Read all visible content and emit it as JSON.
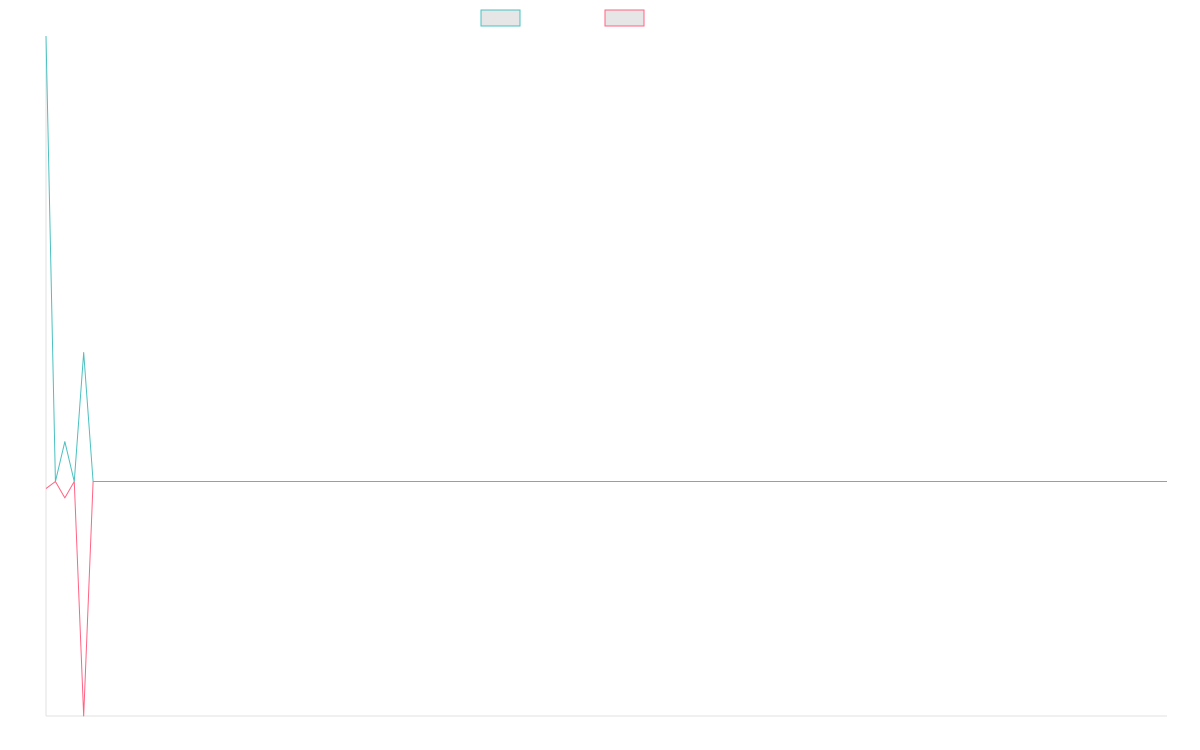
{
  "chart_data": {
    "type": "line",
    "title": "",
    "xlabel": "",
    "ylabel": "",
    "x": [
      0,
      1,
      2,
      3,
      4,
      5,
      6,
      7,
      8,
      9,
      10,
      11,
      12,
      13,
      14,
      15,
      16,
      17,
      18,
      19,
      20,
      21,
      22,
      23,
      24,
      25,
      26,
      27,
      28,
      29,
      30,
      31,
      32,
      33,
      34,
      35,
      36,
      37,
      38,
      39,
      40,
      41,
      42,
      43,
      44,
      45,
      46,
      47,
      48,
      49,
      50,
      51,
      52,
      53,
      54,
      55,
      56,
      57,
      58,
      59,
      60,
      61,
      62,
      63,
      64,
      65,
      66,
      67,
      68,
      69,
      70,
      71,
      72,
      73,
      74,
      75,
      76,
      77,
      78,
      79,
      80,
      81,
      82,
      83,
      84,
      85,
      86,
      87,
      88,
      89,
      90,
      91,
      92,
      93,
      94,
      95,
      96,
      97,
      98,
      99,
      100,
      101,
      102,
      103,
      104,
      105,
      106,
      107,
      108,
      109,
      110,
      111,
      112,
      113,
      114,
      115,
      116,
      117,
      118,
      119
    ],
    "ylim": [
      -1,
      1.9
    ],
    "grid": false,
    "legend_position": "top-center",
    "series": [
      {
        "color": "#4bc0c0",
        "values": [
          1.9,
          0,
          0.17,
          0,
          0.55,
          0,
          0,
          0,
          0,
          0,
          0,
          0,
          0,
          0,
          0,
          0,
          0,
          0,
          0,
          0,
          0,
          0,
          0,
          0,
          0,
          0,
          0,
          0,
          0,
          0,
          0,
          0,
          0,
          0,
          0,
          0,
          0,
          0,
          0,
          0,
          0,
          0,
          0,
          0,
          0,
          0,
          0,
          0,
          0,
          0,
          0,
          0,
          0,
          0,
          0,
          0,
          0,
          0,
          0,
          0,
          0,
          0,
          0,
          0,
          0,
          0,
          0,
          0,
          0,
          0,
          0,
          0,
          0,
          0,
          0,
          0,
          0,
          0,
          0,
          0,
          0,
          0,
          0,
          0,
          0,
          0,
          0,
          0,
          0,
          0,
          0,
          0,
          0,
          0,
          0,
          0,
          0,
          0,
          0,
          0,
          0,
          0,
          0,
          0,
          0,
          0,
          0,
          0,
          0,
          0,
          0,
          0,
          0,
          0,
          0,
          0,
          0,
          0,
          0,
          0
        ]
      },
      {
        "color": "#ff6384",
        "values": [
          -0.03,
          0,
          -0.07,
          0,
          -1.0,
          0,
          0,
          0,
          0,
          0,
          0,
          0,
          0,
          0,
          0,
          0,
          0,
          0,
          0,
          0,
          0,
          0,
          0,
          0,
          0,
          0,
          0,
          0,
          0,
          0,
          0,
          0,
          0,
          0,
          0,
          0,
          0,
          0,
          0,
          0,
          0,
          0,
          0,
          0,
          0,
          0,
          0,
          0,
          0,
          0,
          0,
          0,
          0,
          0,
          0,
          0,
          0,
          0,
          0,
          0,
          0,
          0,
          0,
          0,
          0,
          0,
          0,
          0,
          0,
          0,
          0,
          0,
          0,
          0,
          0,
          0,
          0,
          0,
          0,
          0,
          0,
          0,
          0,
          0,
          0,
          0,
          0,
          0,
          0,
          0,
          0,
          0,
          0,
          0,
          0,
          0,
          0,
          0,
          0,
          0,
          0,
          0,
          0,
          0,
          0,
          0,
          0,
          0,
          0,
          0,
          0,
          0,
          0,
          0,
          0,
          0,
          0,
          0,
          0,
          0
        ]
      }
    ]
  }
}
